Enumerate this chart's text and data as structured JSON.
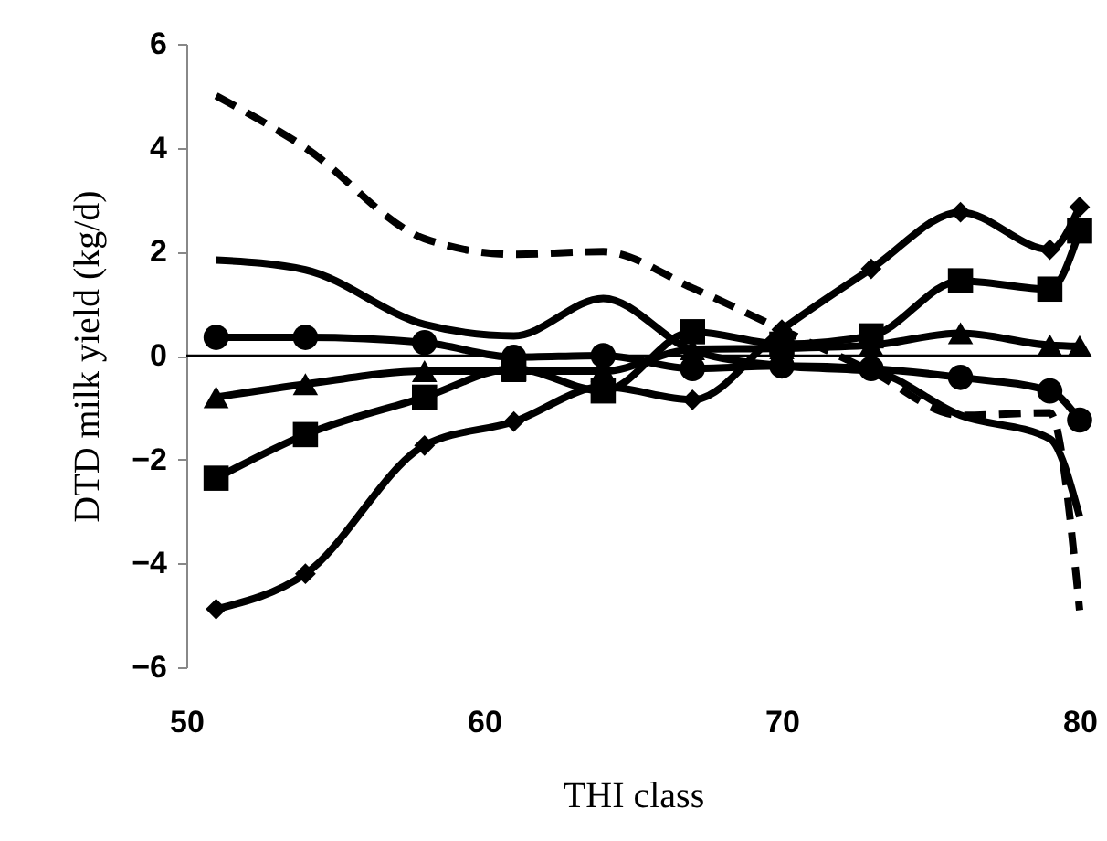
{
  "chart_data": {
    "type": "line",
    "xlabel": "THI class",
    "ylabel": "DTD milk yield (kg/d)",
    "x": [
      51,
      54,
      58,
      61,
      64,
      67,
      70,
      73,
      76,
      79,
      80
    ],
    "xlim": [
      50,
      80
    ],
    "xticks": [
      50,
      60,
      70,
      80
    ],
    "ylim": [
      -6,
      6
    ],
    "yticks": [
      -6,
      -4,
      -2,
      0,
      2,
      4,
      6
    ],
    "grid": false,
    "ref_lines": [
      {
        "axis": "y",
        "value": 0,
        "color": "#000000"
      }
    ],
    "series": [
      {
        "color": "#000000",
        "marker": "none",
        "line_style": "dashed",
        "values": [
          5.0,
          4.0,
          2.25,
          1.95,
          2.0,
          1.3,
          0.5,
          -0.3,
          -1.15,
          -1.1,
          -4.9
        ]
      },
      {
        "color": "#000000",
        "marker": "none",
        "line_style": "solid",
        "values": [
          1.84,
          1.65,
          0.6,
          0.38,
          1.1,
          0.1,
          -0.2,
          -0.3,
          -1.15,
          -1.6,
          -3.1
        ]
      },
      {
        "color": "#000000",
        "marker": "circle",
        "line_style": "solid",
        "values": [
          0.35,
          0.35,
          0.25,
          -0.03,
          0.0,
          -0.25,
          -0.2,
          -0.25,
          -0.42,
          -0.68,
          -1.24
        ]
      },
      {
        "color": "#000000",
        "marker": "triangle",
        "line_style": "solid",
        "values": [
          -0.8,
          -0.55,
          -0.3,
          -0.3,
          -0.3,
          0.12,
          0.14,
          0.2,
          0.43,
          0.2,
          0.18
        ]
      },
      {
        "color": "#000000",
        "marker": "square",
        "line_style": "solid",
        "values": [
          -2.36,
          -1.52,
          -0.8,
          -0.25,
          -0.68,
          0.46,
          0.22,
          0.38,
          1.44,
          1.28,
          2.4
        ]
      },
      {
        "color": "#000000",
        "marker": "diamond",
        "line_style": "solid",
        "values": [
          -4.88,
          -4.2,
          -1.73,
          -1.27,
          -0.6,
          -0.85,
          0.5,
          1.67,
          2.76,
          2.04,
          2.86
        ]
      }
    ]
  }
}
